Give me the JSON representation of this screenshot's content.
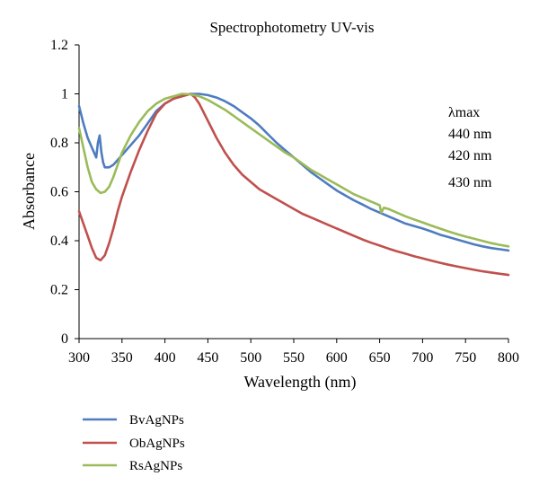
{
  "chart_data": {
    "type": "line",
    "title": "Spectrophotometry UV-vis",
    "xlabel": "Wavelength (nm)",
    "ylabel": "Absorbance",
    "xlim": [
      300,
      800
    ],
    "ylim": [
      0,
      1.2
    ],
    "xticks": [
      300,
      350,
      400,
      450,
      500,
      550,
      600,
      650,
      700,
      750,
      800
    ],
    "yticks": [
      0,
      0.2,
      0.4,
      0.6,
      0.8,
      1,
      1.2
    ],
    "xtick_labels": [
      "300",
      "350",
      "400",
      "450",
      "500",
      "550",
      "600",
      "650",
      "700",
      "750",
      "800"
    ],
    "ytick_labels": [
      "0",
      "0.2",
      "0.4",
      "0.6",
      "0.8",
      "1",
      "1.2"
    ],
    "grid": false,
    "legend_position": "bottom-left",
    "annotations": [
      "λmax",
      "440 nm",
      "420 nm",
      "430 nm"
    ],
    "series": [
      {
        "name": "BvAgNPs",
        "color": "#4F7CC0",
        "x": [
          300,
          305,
          310,
          315,
          320,
          322,
          324,
          326,
          328,
          330,
          335,
          340,
          345,
          350,
          360,
          370,
          380,
          390,
          400,
          410,
          420,
          430,
          440,
          450,
          460,
          470,
          480,
          490,
          500,
          510,
          520,
          530,
          540,
          550,
          560,
          570,
          580,
          590,
          600,
          610,
          620,
          630,
          640,
          650,
          660,
          670,
          680,
          690,
          700,
          710,
          720,
          730,
          740,
          750,
          760,
          770,
          780,
          790,
          800
        ],
        "y": [
          0.95,
          0.88,
          0.82,
          0.78,
          0.74,
          0.8,
          0.83,
          0.76,
          0.72,
          0.7,
          0.7,
          0.71,
          0.73,
          0.75,
          0.79,
          0.83,
          0.88,
          0.93,
          0.96,
          0.98,
          0.995,
          1.0,
          1.0,
          0.995,
          0.985,
          0.97,
          0.95,
          0.925,
          0.9,
          0.87,
          0.835,
          0.8,
          0.77,
          0.74,
          0.71,
          0.68,
          0.655,
          0.63,
          0.605,
          0.585,
          0.565,
          0.548,
          0.53,
          0.515,
          0.5,
          0.485,
          0.47,
          0.46,
          0.45,
          0.438,
          0.425,
          0.415,
          0.405,
          0.395,
          0.385,
          0.377,
          0.37,
          0.365,
          0.36
        ]
      },
      {
        "name": "ObAgNPs",
        "color": "#C0504D",
        "x": [
          300,
          305,
          310,
          315,
          320,
          325,
          330,
          335,
          340,
          345,
          350,
          360,
          370,
          380,
          390,
          400,
          410,
          420,
          425,
          430,
          435,
          440,
          450,
          460,
          470,
          480,
          490,
          500,
          510,
          520,
          530,
          540,
          550,
          560,
          570,
          580,
          590,
          600,
          610,
          620,
          630,
          640,
          650,
          660,
          670,
          680,
          690,
          700,
          710,
          720,
          730,
          740,
          750,
          760,
          770,
          780,
          790,
          800
        ],
        "y": [
          0.52,
          0.47,
          0.42,
          0.37,
          0.33,
          0.32,
          0.34,
          0.39,
          0.45,
          0.52,
          0.58,
          0.68,
          0.77,
          0.85,
          0.92,
          0.96,
          0.98,
          0.99,
          0.995,
          1.0,
          0.985,
          0.96,
          0.89,
          0.82,
          0.76,
          0.71,
          0.67,
          0.64,
          0.61,
          0.59,
          0.57,
          0.55,
          0.53,
          0.51,
          0.495,
          0.48,
          0.465,
          0.45,
          0.435,
          0.42,
          0.405,
          0.392,
          0.38,
          0.368,
          0.357,
          0.347,
          0.337,
          0.328,
          0.319,
          0.31,
          0.302,
          0.295,
          0.288,
          0.281,
          0.275,
          0.27,
          0.265,
          0.26
        ]
      },
      {
        "name": "RsAgNPs",
        "color": "#9BBB59",
        "x": [
          300,
          305,
          310,
          315,
          320,
          325,
          330,
          335,
          340,
          345,
          350,
          360,
          370,
          380,
          390,
          400,
          410,
          420,
          430,
          440,
          450,
          460,
          470,
          480,
          490,
          500,
          510,
          520,
          530,
          540,
          550,
          560,
          570,
          580,
          590,
          600,
          610,
          620,
          630,
          640,
          650,
          652,
          655,
          660,
          670,
          680,
          690,
          700,
          710,
          720,
          730,
          740,
          750,
          760,
          770,
          780,
          790,
          800
        ],
        "y": [
          0.86,
          0.78,
          0.7,
          0.64,
          0.61,
          0.595,
          0.6,
          0.62,
          0.66,
          0.71,
          0.76,
          0.83,
          0.885,
          0.93,
          0.96,
          0.98,
          0.99,
          1.0,
          0.998,
          0.99,
          0.975,
          0.955,
          0.935,
          0.91,
          0.885,
          0.86,
          0.835,
          0.81,
          0.785,
          0.76,
          0.74,
          0.715,
          0.69,
          0.67,
          0.65,
          0.63,
          0.61,
          0.59,
          0.575,
          0.56,
          0.545,
          0.515,
          0.535,
          0.53,
          0.515,
          0.5,
          0.487,
          0.475,
          0.462,
          0.45,
          0.438,
          0.427,
          0.417,
          0.408,
          0.399,
          0.39,
          0.383,
          0.377
        ]
      }
    ]
  }
}
